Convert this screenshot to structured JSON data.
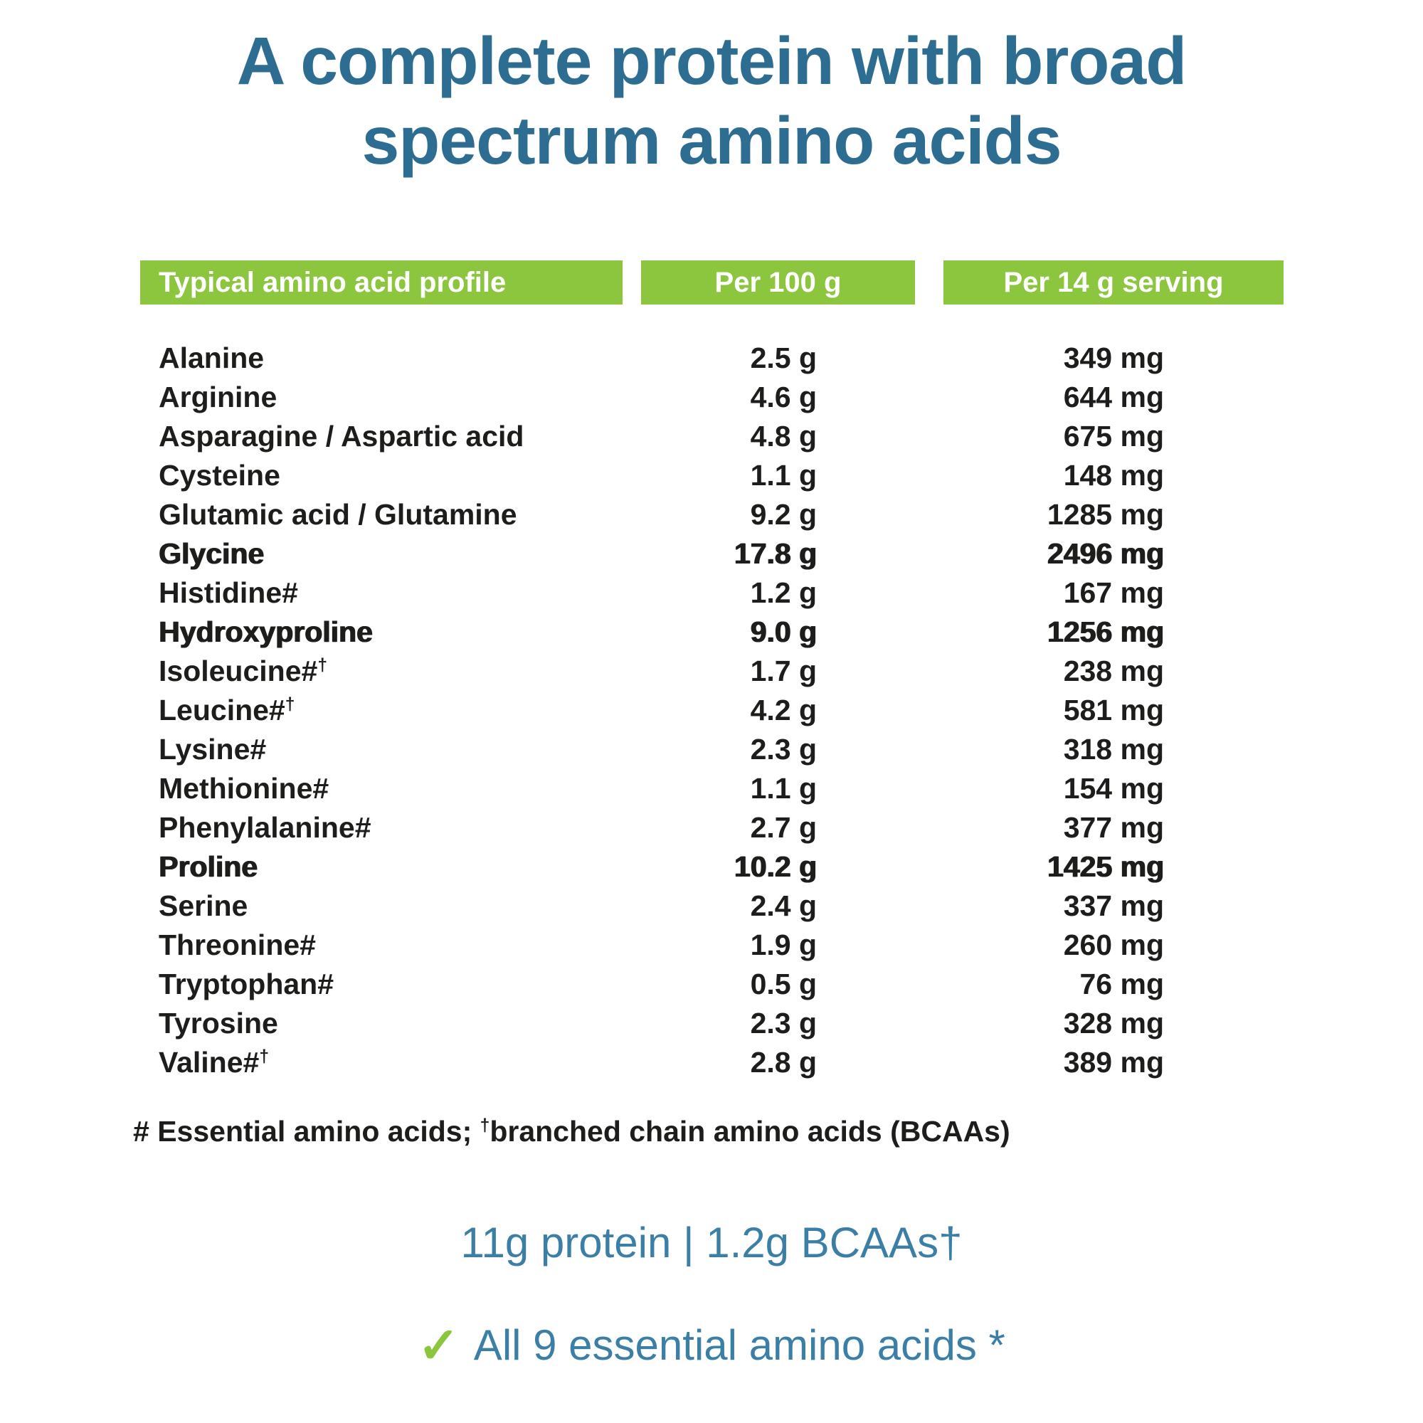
{
  "title": {
    "line1": "A complete protein with broad",
    "line2": "spectrum amino acids"
  },
  "table": {
    "headers": [
      "Typical amino acid profile",
      "Per 100 g",
      "Per 14 g serving"
    ],
    "rows": [
      {
        "name": "Alanine",
        "sup": "",
        "per100": "2.5 g",
        "per14": "349 mg",
        "bold": false
      },
      {
        "name": "Arginine",
        "sup": "",
        "per100": "4.6 g",
        "per14": "644 mg",
        "bold": false
      },
      {
        "name": "Asparagine / Aspartic acid",
        "sup": "",
        "per100": "4.8 g",
        "per14": "675 mg",
        "bold": false
      },
      {
        "name": "Cysteine",
        "sup": "",
        "per100": "1.1 g",
        "per14": "148 mg",
        "bold": false
      },
      {
        "name": "Glutamic acid / Glutamine",
        "sup": "",
        "per100": "9.2 g",
        "per14": "1285 mg",
        "bold": false
      },
      {
        "name": "Glycine",
        "sup": "",
        "per100": "17.8 g",
        "per14": "2496 mg",
        "bold": true
      },
      {
        "name": "Histidine#",
        "sup": "",
        "per100": "1.2 g",
        "per14": "167 mg",
        "bold": false
      },
      {
        "name": "Hydroxyproline",
        "sup": "",
        "per100": "9.0 g",
        "per14": "1256 mg",
        "bold": true
      },
      {
        "name": "Isoleucine#",
        "sup": "†",
        "per100": "1.7 g",
        "per14": "238 mg",
        "bold": false
      },
      {
        "name": "Leucine#",
        "sup": "†",
        "per100": "4.2 g",
        "per14": "581 mg",
        "bold": false
      },
      {
        "name": "Lysine#",
        "sup": "",
        "per100": "2.3 g",
        "per14": "318 mg",
        "bold": false
      },
      {
        "name": "Methionine#",
        "sup": "",
        "per100": "1.1 g",
        "per14": "154 mg",
        "bold": false
      },
      {
        "name": "Phenylalanine#",
        "sup": "",
        "per100": "2.7 g",
        "per14": "377 mg",
        "bold": false
      },
      {
        "name": "Proline",
        "sup": "",
        "per100": "10.2 g",
        "per14": "1425 mg",
        "bold": true
      },
      {
        "name": "Serine",
        "sup": "",
        "per100": "2.4 g",
        "per14": "337 mg",
        "bold": false
      },
      {
        "name": "Threonine#",
        "sup": "",
        "per100": "1.9 g",
        "per14": "260 mg",
        "bold": false
      },
      {
        "name": "Tryptophan#",
        "sup": "",
        "per100": "0.5 g",
        "per14": "76 mg",
        "bold": false
      },
      {
        "name": "Tyrosine",
        "sup": "",
        "per100": "2.3 g",
        "per14": "328 mg",
        "bold": false
      },
      {
        "name": "Valine#",
        "sup": "†",
        "per100": "2.8 g",
        "per14": "389 mg",
        "bold": false
      }
    ],
    "footnote": {
      "part1": "# Essential amino acids; ",
      "sup": "†",
      "part2": "branched chain amino acids (BCAAs)"
    }
  },
  "summary": {
    "protein_line": "11g protein | 1.2g BCAAs†",
    "check_icon": "✓",
    "essential_line": "All 9 essential amino acids *"
  },
  "colors": {
    "teal": "#2e6d92",
    "green": "#8cc63f",
    "text": "#1d1d1b"
  }
}
